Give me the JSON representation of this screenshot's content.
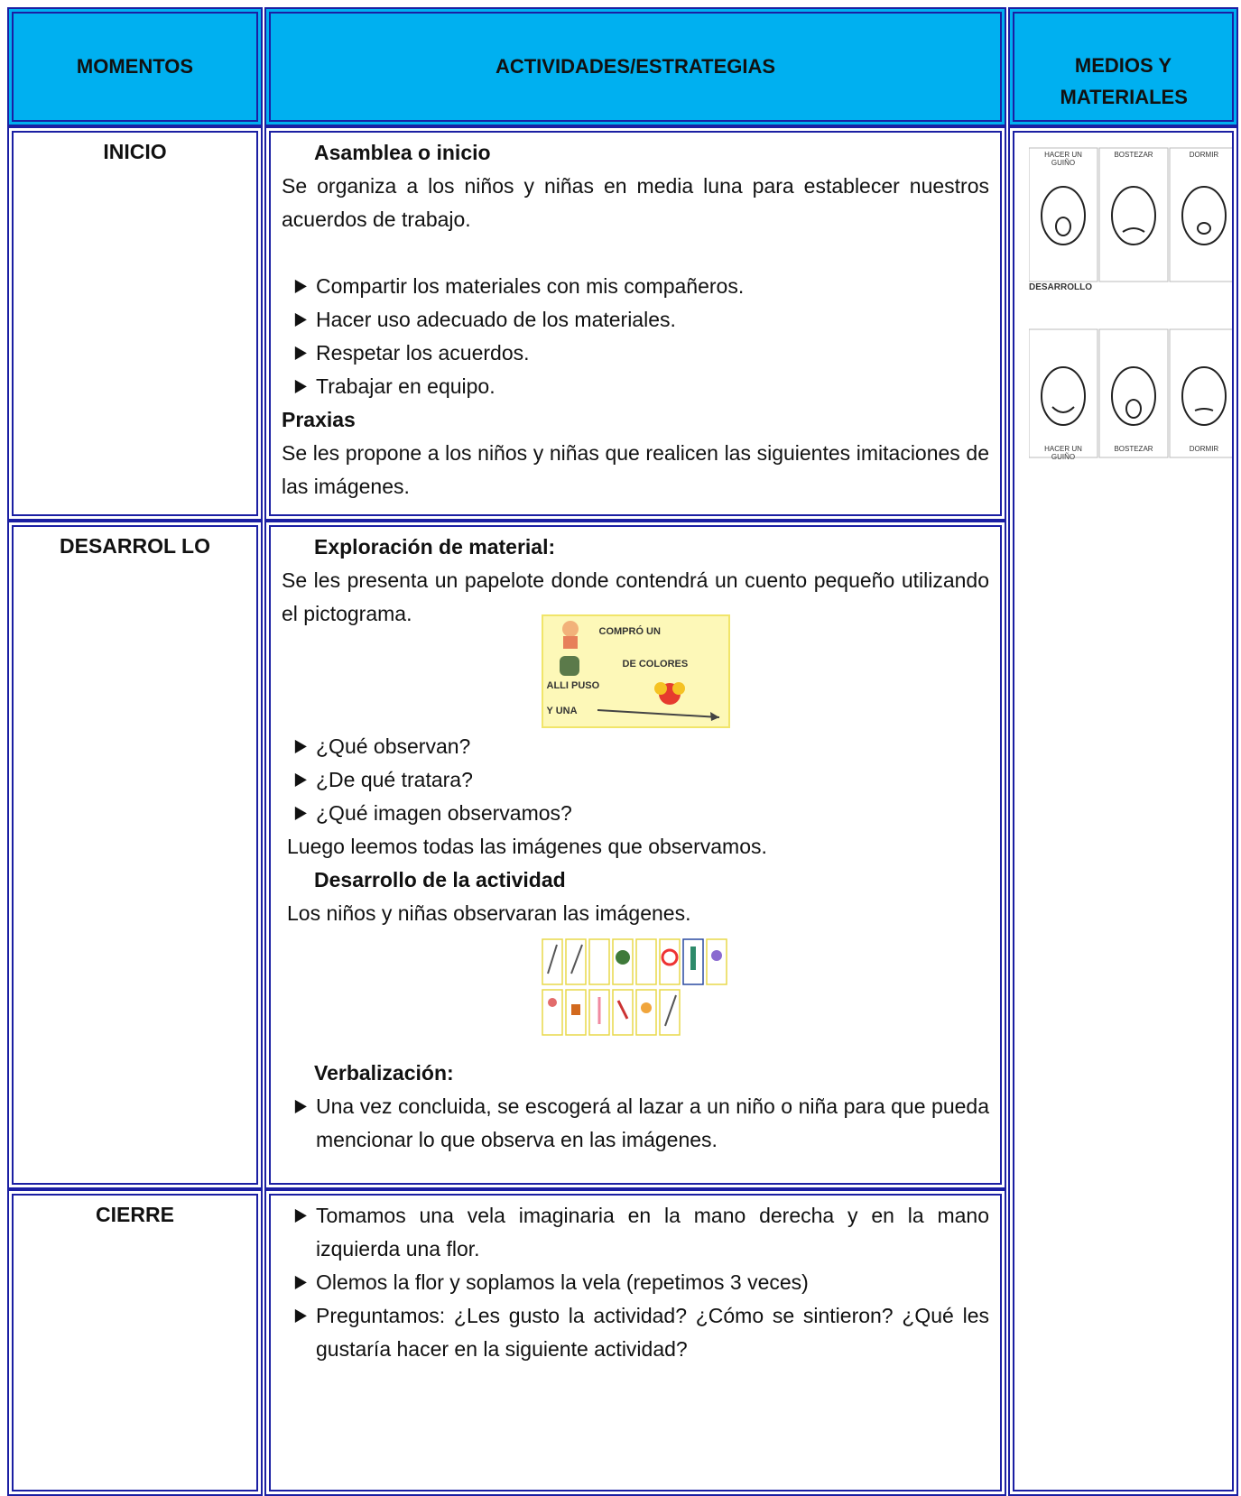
{
  "header": {
    "momentos": "MOMENTOS",
    "actividades": "ACTIVIDADES/ESTRATEGIAS",
    "medios": "MEDIOS Y MATERIALES"
  },
  "rows": [
    {
      "momento": "INICIO",
      "heading_1": "Asamblea o inicio",
      "paragraph_1": "Se organiza a los niños y niñas en media luna para establecer nuestros acuerdos de trabajo.",
      "list_1": [
        "Compartir los materiales con mis compañeros.",
        "Hacer uso adecuado de los materiales.",
        "Respetar los acuerdos.",
        "Trabajar en equipo."
      ],
      "heading_2": "Praxias",
      "paragraph_2": "Se les propone a los niños y niñas que realicen las siguientes imitaciones de las imágenes."
    },
    {
      "momento": "DESARROL LO",
      "heading_1": "Exploración de material:",
      "paragraph_1": "Se les presenta un papelote donde  contendrá un cuento pequeño  utilizando el pictograma.",
      "pictogram": [
        "COMPRÓ UN",
        "DE COLORES",
        "ALLI PUSO",
        "Y UNA"
      ],
      "list_1": [
        "¿Qué observan?",
        "¿De qué tratara?",
        "¿Qué imagen observamos?"
      ],
      "paragraph_2": "Luego leemos todas las imágenes que observamos.",
      "heading_2": "Desarrollo de la actividad",
      "paragraph_3": "Los niños y niñas observaran las imágenes.",
      "heading_3": "Verbalización:",
      "list_2": [
        "Una vez concluida, se escogerá al lazar a un niño o niña para que pueda mencionar lo que observa en las imágenes."
      ]
    },
    {
      "momento": "CIERRE",
      "list_1": [
        "Tomamos una vela imaginaria en la mano derecha y en la mano izquierda una flor.",
        "Olemos la flor y soplamos la vela (repetimos 3 veces)",
        "Preguntamos: ¿Les gusto la actividad? ¿Cómo se sintieron? ¿Qué les gustaría hacer en la siguiente actividad?"
      ]
    }
  ],
  "medios": {
    "faces_top": [
      "HACER UN GUIÑO",
      "BOSTEZAR",
      "DORMIR"
    ],
    "caption": "DESARROLLO",
    "faces_bottom": [
      "HACER UN GUIÑO",
      "BOSTEZAR",
      "DORMIR"
    ]
  }
}
